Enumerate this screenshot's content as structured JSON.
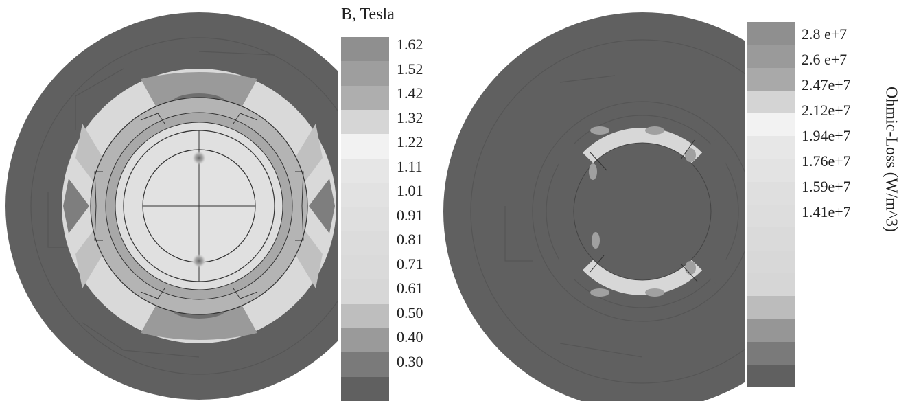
{
  "flux_legend": {
    "title": "B, Tesla",
    "labels": [
      "1.62",
      "1.52",
      "1.42",
      "1.32",
      "1.22",
      "1.11",
      "1.01",
      "0.91",
      "0.81",
      "0.71",
      "0.61",
      "0.50",
      "0.40",
      "0.30"
    ],
    "colors": [
      "#8f8f8f",
      "#9e9e9e",
      "#aeaeae",
      "#d6d6d6",
      "#f2f2f2",
      "#e6e6e6",
      "#e2e2e2",
      "#dfdfdf",
      "#dcdcdc",
      "#dadada",
      "#d7d7d7",
      "#bebebe",
      "#9a9a9a",
      "#7a7a7a",
      "#606060"
    ]
  },
  "loss_legend": {
    "title": "Ohmic-Loss (W/m^3)",
    "labels": [
      "2.8 e+7",
      "2.6 e+7",
      "2.47e+7",
      "2.12e+7",
      "1.94e+7",
      "1.76e+7",
      "1.59e+7",
      "1.41e+7"
    ],
    "colors": [
      "#8f8f8f",
      "#9a9a9a",
      "#a9a9a9",
      "#d4d4d4",
      "#f2f2f2",
      "#e7e7e7",
      "#e3e3e3",
      "#dfdfdf",
      "#dddddd",
      "#dadada",
      "#d8d8d8",
      "#d6d6d6",
      "#bcbcbc",
      "#969696",
      "#7a7a7a",
      "#606060"
    ]
  }
}
